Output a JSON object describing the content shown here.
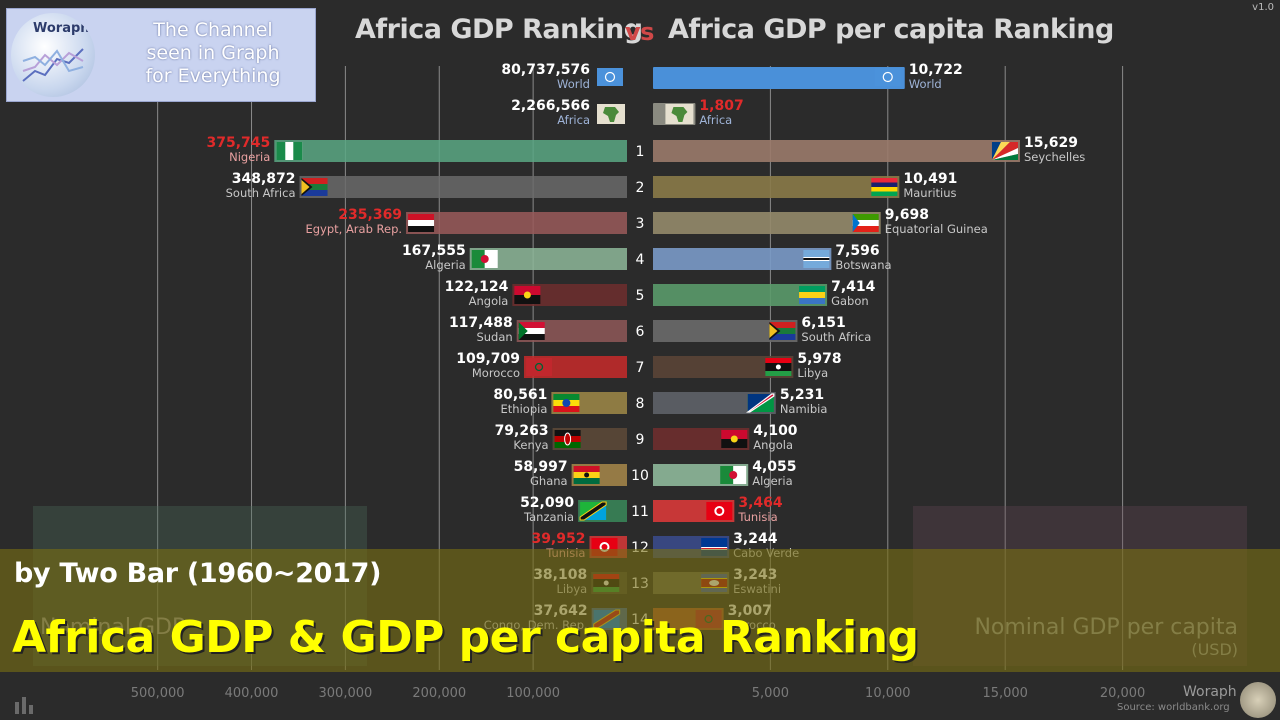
{
  "header": {
    "title_left": "Africa GDP Ranking",
    "vs_label": "vs",
    "title_right": "Africa GDP per capita Ranking",
    "version": "v1.0"
  },
  "logo": {
    "wordmark": "Woraph",
    "channel_line1": "The Channel",
    "channel_line2": "seen in Graph",
    "channel_line3": "for Everything"
  },
  "overlay": {
    "subtitle": "by Two Bar (1960~2017)",
    "main_title": "Africa GDP & GDP per capita Ranking"
  },
  "footer": {
    "brand": "Woraph",
    "source": "Source: worldbank.org"
  },
  "colors": {
    "background": "#2b2b2b",
    "title": "#d8d8d8",
    "vs": "#d04848",
    "highlight_red": "#e02a2a",
    "caption_band": "#786e14",
    "caption_yellow": "#ffff00"
  },
  "chart_data": [
    {
      "type": "bar",
      "orientation": "horizontal",
      "direction": "right-to-left",
      "title": "Africa GDP Ranking",
      "watermark_label": "Nominal GDP",
      "xlim": [
        0,
        525000
      ],
      "ticks": [
        500000,
        400000,
        300000,
        200000,
        100000
      ],
      "tick_labels": [
        "500,000",
        "400,000",
        "300,000",
        "200,000",
        "100,000"
      ],
      "summary": [
        {
          "name": "World",
          "value": 80737576,
          "value_label": "80,737,576",
          "icon": "un-flag-icon",
          "color": "#4a90d9",
          "highlight": false
        },
        {
          "name": "Africa",
          "value": 2266566,
          "value_label": "2,266,566",
          "icon": "africa-map-icon",
          "color": "#8a8a80",
          "highlight": false
        }
      ],
      "bars": [
        {
          "rank": 1,
          "name": "Nigeria",
          "value": 375745,
          "value_label": "375,745",
          "color": "#5aa884",
          "highlight": true,
          "flag": "nigeria-flag-icon"
        },
        {
          "rank": 2,
          "name": "South Africa",
          "value": 348872,
          "value_label": "348,872",
          "color": "#6a6a6a",
          "highlight": false,
          "flag": "south-africa-flag-icon"
        },
        {
          "rank": 3,
          "name": "Egypt, Arab Rep.",
          "value": 235369,
          "value_label": "235,369",
          "color": "#9a5a5a",
          "highlight": true,
          "flag": "egypt-flag-icon"
        },
        {
          "rank": 4,
          "name": "Algeria",
          "value": 167555,
          "value_label": "167,555",
          "color": "#8eb89a",
          "highlight": false,
          "flag": "algeria-flag-icon"
        },
        {
          "rank": 5,
          "name": "Angola",
          "value": 122124,
          "value_label": "122,124",
          "color": "#6e2e2e",
          "highlight": false,
          "flag": "angola-flag-icon"
        },
        {
          "rank": 6,
          "name": "Sudan",
          "value": 117488,
          "value_label": "117,488",
          "color": "#8f5858",
          "highlight": false,
          "flag": "sudan-flag-icon"
        },
        {
          "rank": 7,
          "name": "Morocco",
          "value": 109709,
          "value_label": "109,709",
          "color": "#c82a2a",
          "highlight": false,
          "flag": "morocco-flag-icon"
        },
        {
          "rank": 8,
          "name": "Ethiopia",
          "value": 80561,
          "value_label": "80,561",
          "color": "#a08a48",
          "highlight": false,
          "flag": "ethiopia-flag-icon"
        },
        {
          "rank": 9,
          "name": "Kenya",
          "value": 79263,
          "value_label": "79,263",
          "color": "#5e4a38",
          "highlight": false,
          "flag": "kenya-flag-icon"
        },
        {
          "rank": 10,
          "name": "Ghana",
          "value": 58997,
          "value_label": "58,997",
          "color": "#a8884a",
          "highlight": false,
          "flag": "ghana-flag-icon"
        },
        {
          "rank": 11,
          "name": "Tanzania",
          "value": 52090,
          "value_label": "52,090",
          "color": "#3a8a5a",
          "highlight": false,
          "flag": "tanzania-flag-icon"
        },
        {
          "rank": 12,
          "name": "Tunisia",
          "value": 39952,
          "value_label": "39,952",
          "color": "#d83838",
          "highlight": true,
          "flag": "tunisia-flag-icon"
        },
        {
          "rank": 13,
          "name": "Libya",
          "value": 38108,
          "value_label": "38,108",
          "color": "#4a4a40",
          "highlight": false,
          "flag": "libya-flag-icon"
        },
        {
          "rank": 14,
          "name": "Congo, Dem. Rep.",
          "value": 37642,
          "value_label": "37,642",
          "color": "#3a6ab8",
          "highlight": false,
          "flag": "drc-flag-icon"
        }
      ]
    },
    {
      "type": "bar",
      "orientation": "horizontal",
      "direction": "left-to-right",
      "title": "Africa GDP per capita Ranking",
      "watermark_label": "Nominal GDP per capita",
      "watermark_unit": "(USD)",
      "xlim": [
        0,
        20800
      ],
      "ticks": [
        5000,
        10000,
        15000,
        20000
      ],
      "tick_labels": [
        "5,000",
        "10,000",
        "15,000",
        "20,000"
      ],
      "summary": [
        {
          "name": "World",
          "value": 10722,
          "value_label": "10,722",
          "icon": "un-flag-icon",
          "color": "#4a90d9",
          "highlight": false
        },
        {
          "name": "Africa",
          "value": 1807,
          "value_label": "1,807",
          "icon": "africa-map-icon",
          "color": "#8a8a80",
          "highlight": true
        }
      ],
      "bars": [
        {
          "rank": 1,
          "name": "Seychelles",
          "value": 15629,
          "value_label": "15,629",
          "color": "#9a7a6a",
          "highlight": false,
          "flag": "seychelles-flag-icon"
        },
        {
          "rank": 2,
          "name": "Mauritius",
          "value": 10491,
          "value_label": "10,491",
          "color": "#8a7a48",
          "highlight": false,
          "flag": "mauritius-flag-icon"
        },
        {
          "rank": 3,
          "name": "Equatorial Guinea",
          "value": 9698,
          "value_label": "9,698",
          "color": "#948a6a",
          "highlight": false,
          "flag": "equatorial-guinea-flag-icon"
        },
        {
          "rank": 4,
          "name": "Botswana",
          "value": 7596,
          "value_label": "7,596",
          "color": "#7a9ac8",
          "highlight": false,
          "flag": "botswana-flag-icon"
        },
        {
          "rank": 5,
          "name": "Gabon",
          "value": 7414,
          "value_label": "7,414",
          "color": "#5a9a6a",
          "highlight": false,
          "flag": "gabon-flag-icon"
        },
        {
          "rank": 6,
          "name": "South Africa",
          "value": 6151,
          "value_label": "6,151",
          "color": "#6a6a6a",
          "highlight": false,
          "flag": "south-africa-flag-icon"
        },
        {
          "rank": 7,
          "name": "Libya",
          "value": 5978,
          "value_label": "5,978",
          "color": "#5a4436",
          "highlight": false,
          "flag": "libya-flag-icon"
        },
        {
          "rank": 8,
          "name": "Namibia",
          "value": 5231,
          "value_label": "5,231",
          "color": "#5e6268",
          "highlight": false,
          "flag": "namibia-flag-icon"
        },
        {
          "rank": 9,
          "name": "Angola",
          "value": 4100,
          "value_label": "4,100",
          "color": "#6e2e2e",
          "highlight": false,
          "flag": "angola-flag-icon"
        },
        {
          "rank": 10,
          "name": "Algeria",
          "value": 4055,
          "value_label": "4,055",
          "color": "#8eb89a",
          "highlight": false,
          "flag": "algeria-flag-icon"
        },
        {
          "rank": 11,
          "name": "Tunisia",
          "value": 3464,
          "value_label": "3,464",
          "color": "#d83838",
          "highlight": true,
          "flag": "tunisia-flag-icon"
        },
        {
          "rank": 12,
          "name": "Cabo Verde",
          "value": 3244,
          "value_label": "3,244",
          "color": "#3a4a8a",
          "highlight": false,
          "flag": "cabo-verde-flag-icon"
        },
        {
          "rank": 13,
          "name": "Eswatini",
          "value": 3243,
          "value_label": "3,243",
          "color": "#6a6a58",
          "highlight": false,
          "flag": "eswatini-flag-icon"
        },
        {
          "rank": 14,
          "name": "Morocco",
          "value": 3007,
          "value_label": "3,007",
          "color": "#b85a2a",
          "highlight": false,
          "flag": "morocco-flag-icon"
        }
      ]
    }
  ]
}
